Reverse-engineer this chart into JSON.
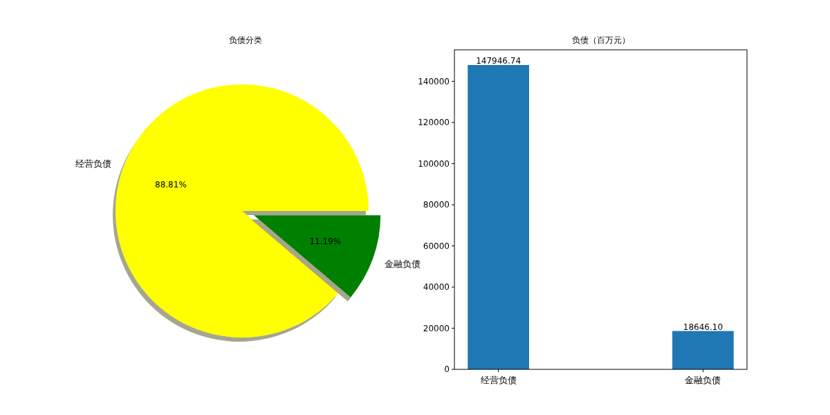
{
  "chart_data": [
    {
      "type": "pie",
      "title": "负债分类",
      "categories": [
        "经营负债",
        "金融负债"
      ],
      "values": [
        88.81,
        11.19
      ],
      "colors": [
        "#ffff00",
        "#008000"
      ],
      "value_labels": [
        "88.81%",
        "11.19%"
      ]
    },
    {
      "type": "bar",
      "title": "负债（百万元）",
      "categories": [
        "经营负债",
        "金融负债"
      ],
      "values": [
        147946.74,
        18646.1
      ],
      "color": "#1f77b4",
      "value_labels": [
        "147946.74",
        "18646.10"
      ],
      "ylim": [
        0,
        155344
      ],
      "yticks": [
        0,
        20000,
        40000,
        60000,
        80000,
        100000,
        120000,
        140000
      ],
      "grid": false
    }
  ]
}
